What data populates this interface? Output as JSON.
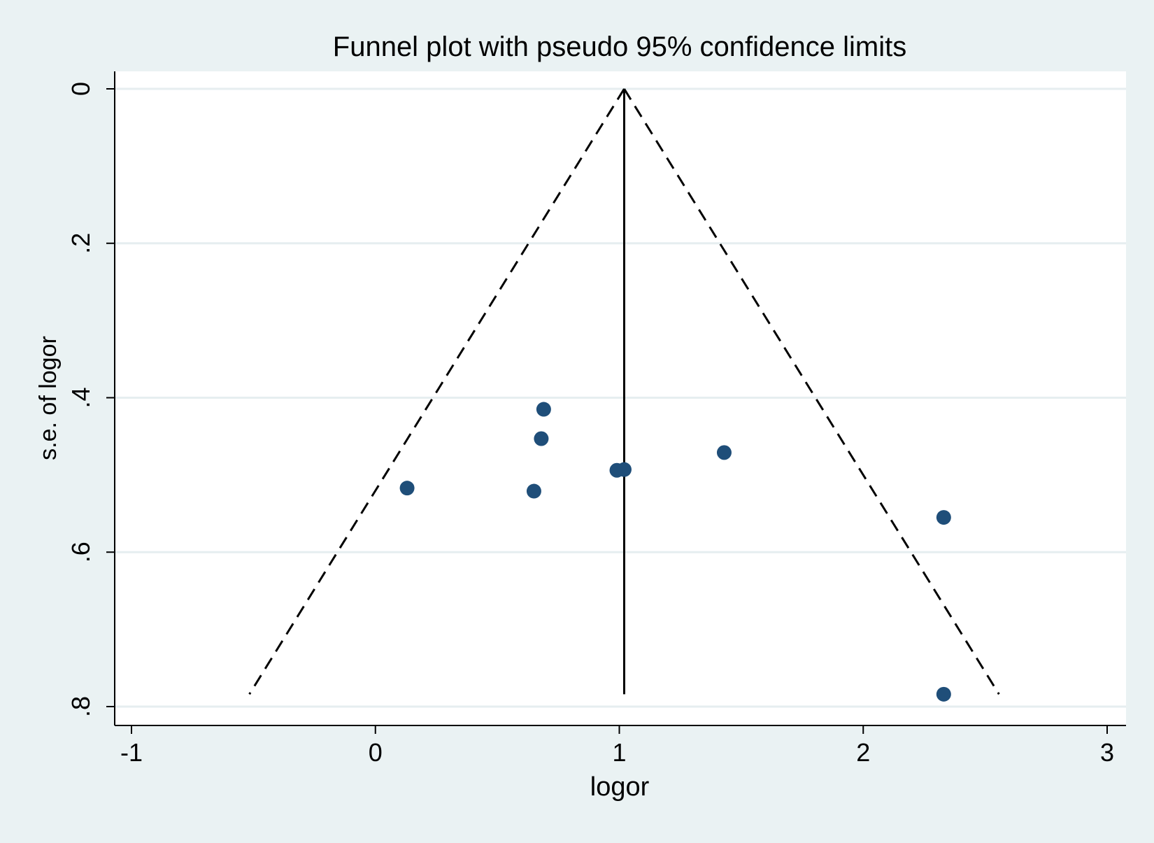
{
  "chart_data": {
    "type": "scatter",
    "title": "Funnel plot with pseudo 95% confidence limits",
    "xlabel": "logor",
    "ylabel": "s.e. of logor",
    "xlim": [
      -1,
      3
    ],
    "ylim": [
      0,
      0.8
    ],
    "y_reversed": true,
    "x_ticks": [
      {
        "value": -1,
        "label": "-1"
      },
      {
        "value": 0,
        "label": "0"
      },
      {
        "value": 1,
        "label": "1"
      },
      {
        "value": 2,
        "label": "2"
      },
      {
        "value": 3,
        "label": "3"
      }
    ],
    "y_ticks": [
      {
        "value": 0,
        "label": "0"
      },
      {
        "value": 0.2,
        "label": ".2"
      },
      {
        "value": 0.4,
        "label": ".4"
      },
      {
        "value": 0.6,
        "label": ".6"
      },
      {
        "value": 0.8,
        "label": ".8"
      }
    ],
    "grid": true,
    "points": [
      {
        "x": 0.69,
        "y": 0.415
      },
      {
        "x": 0.68,
        "y": 0.453
      },
      {
        "x": 1.43,
        "y": 0.471
      },
      {
        "x": 0.99,
        "y": 0.494
      },
      {
        "x": 1.02,
        "y": 0.493
      },
      {
        "x": 0.13,
        "y": 0.517
      },
      {
        "x": 0.65,
        "y": 0.521
      },
      {
        "x": 2.33,
        "y": 0.555
      },
      {
        "x": 2.33,
        "y": 0.784
      }
    ],
    "pooled_estimate": 1.02,
    "funnel_se_max": 0.784,
    "funnel_z": 1.96,
    "colors": {
      "background": "#eaf2f3",
      "plot_area": "#ffffff",
      "grid": "#e6eef0",
      "marker": "#1f4e79",
      "lines": "#000000"
    }
  }
}
